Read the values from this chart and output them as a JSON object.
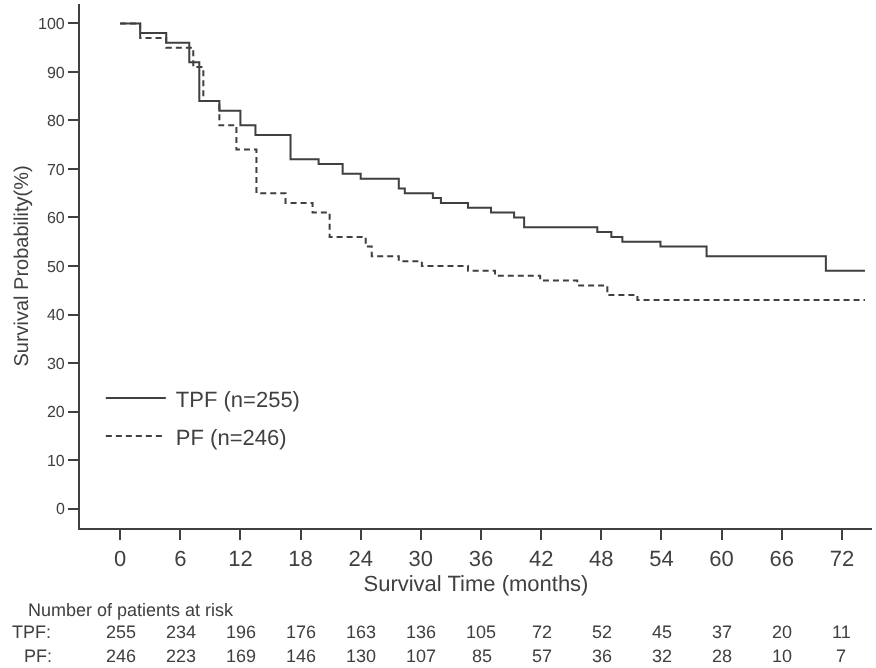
{
  "chart_data": {
    "type": "step",
    "xlabel": "Survival Time (months)",
    "ylabel": "Survival Probability(%)",
    "xlim": [
      -4,
      75
    ],
    "xticks": [
      0,
      6,
      12,
      18,
      24,
      30,
      36,
      42,
      48,
      54,
      60,
      66,
      72
    ],
    "ylim": [
      -4,
      104
    ],
    "yticks": [
      0,
      10,
      20,
      30,
      40,
      50,
      60,
      70,
      80,
      90,
      100
    ],
    "legend": "bottom left",
    "marker": "none",
    "series": [
      {
        "name": "TPF (n=255)",
        "color": "#404040",
        "line_style": "solid",
        "x": [
          0,
          2,
          4.6,
          6.9,
          7.9,
          9.9,
          12,
          13.5,
          17,
          19.8,
          22.2,
          24,
          27.8,
          28.4,
          31.2,
          32,
          34.7,
          37,
          39.3,
          40.3,
          47.6,
          49,
          50.1,
          53.9,
          58.5,
          70.4,
          74.3
        ],
        "values": [
          100,
          98,
          96,
          92,
          84,
          82,
          79,
          77,
          72,
          71,
          69,
          68,
          66,
          65,
          64,
          63,
          62,
          61,
          60,
          58,
          57,
          56,
          55,
          54,
          52,
          49,
          49
        ]
      },
      {
        "name": "PF (n=246)",
        "color": "#404040",
        "line_style": "dashed",
        "x": [
          0,
          2,
          4.6,
          7.3,
          8.3,
          9.9,
          11.6,
          13.6,
          16.5,
          19.2,
          20.9,
          24.5,
          25.1,
          27.8,
          30.1,
          34.7,
          37.4,
          41.9,
          45.6,
          48.6,
          51.6,
          74.3
        ],
        "values": [
          100,
          97,
          95,
          91,
          84,
          79,
          74,
          65,
          63,
          61,
          56,
          54,
          52,
          51,
          50,
          49,
          48,
          47,
          46,
          44,
          43,
          43
        ]
      }
    ],
    "annotations": [
      "Number of patients at risk",
      "TPF:",
      "255",
      "234",
      "196",
      "176",
      "163",
      "136",
      "105",
      "72",
      "52",
      "45",
      "37",
      "20",
      "11",
      "PF:",
      "246",
      "223",
      "169",
      "146",
      "130",
      "107",
      "85",
      "57",
      "36",
      "32",
      "28",
      "10",
      "7"
    ]
  }
}
